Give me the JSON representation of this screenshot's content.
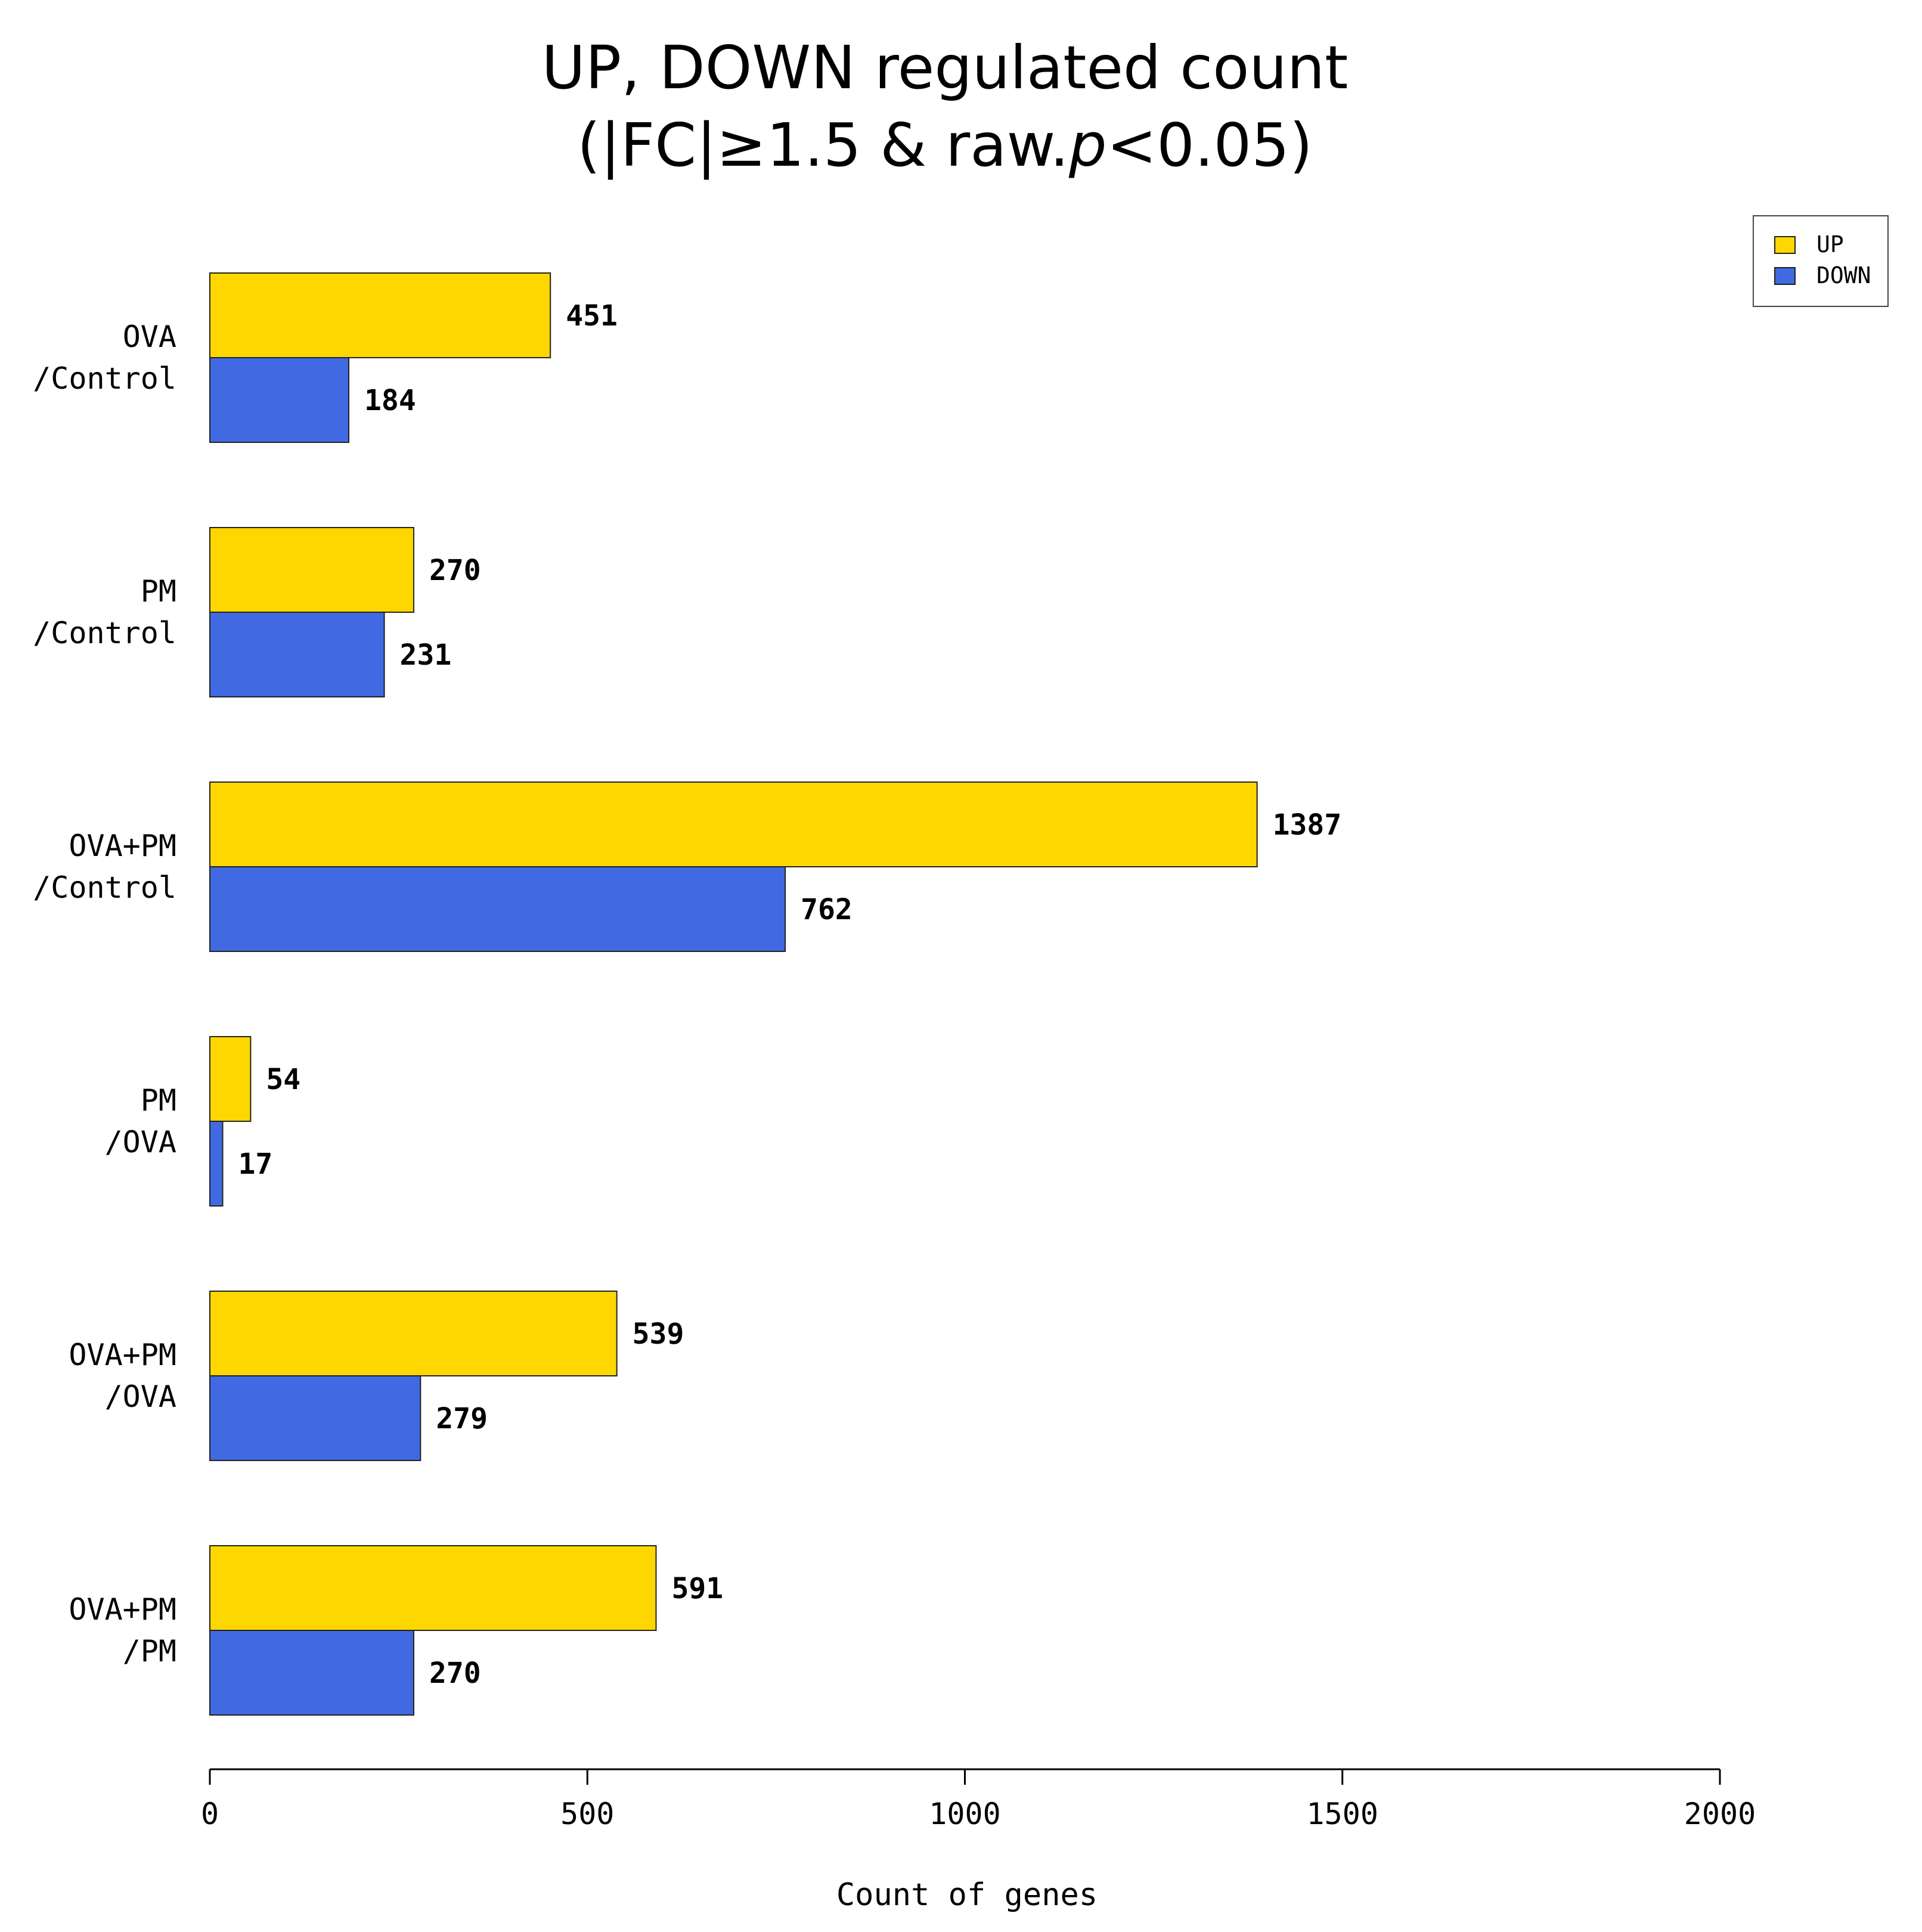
{
  "chart_data": {
    "type": "bar",
    "orientation": "horizontal",
    "title_line1": "UP, DOWN regulated count",
    "title_line2_prefix": "(|FC|≥1.5 & raw.",
    "title_line2_italic": "p",
    "title_line2_suffix": "<0.05)",
    "categories": [
      {
        "line1": "OVA",
        "line2": "/Control"
      },
      {
        "line1": "PM",
        "line2": "/Control"
      },
      {
        "line1": "OVA+PM",
        "line2": "/Control"
      },
      {
        "line1": "PM",
        "line2": "/OVA"
      },
      {
        "line1": "OVA+PM",
        "line2": "/OVA"
      },
      {
        "line1": "OVA+PM",
        "line2": "/PM"
      }
    ],
    "series": [
      {
        "name": "UP",
        "color": "#FFD700",
        "values": [
          451,
          270,
          1387,
          54,
          539,
          591
        ]
      },
      {
        "name": "DOWN",
        "color": "#4169E1",
        "values": [
          184,
          231,
          762,
          17,
          279,
          270
        ]
      }
    ],
    "xlabel": "Count of genes",
    "xlim": [
      0,
      2000
    ],
    "xticks": [
      0,
      500,
      1000,
      1500,
      2000
    ],
    "legend_position": "top-right",
    "grid": false
  }
}
